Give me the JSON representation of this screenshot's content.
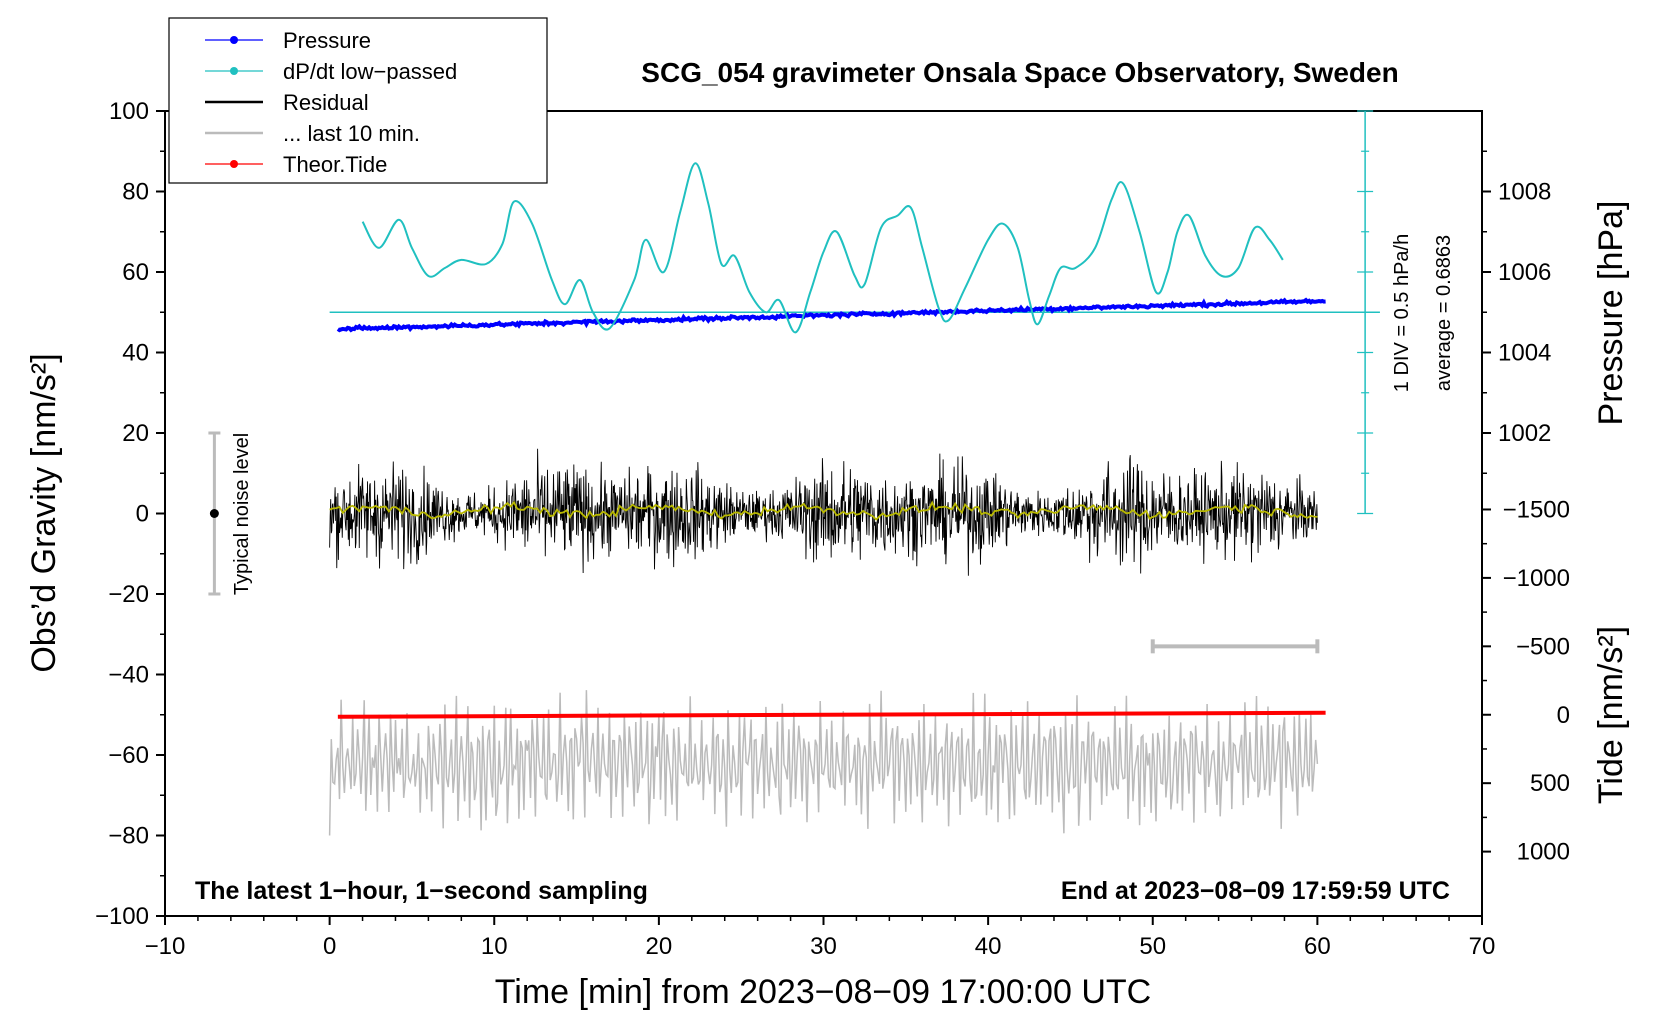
{
  "chart_data": {
    "type": "line",
    "title": "SCG_054 gravimeter Onsala Space Observatory, Sweden",
    "xlabel": "Time [min] from 2023−08−09 17:00:00 UTC",
    "ylabel_left": "Obs’d Gravity [nm/s²]",
    "ylabel_pressure": "Pressure [hPa]",
    "ylabel_tide": "Tide [nm/s²]",
    "xlim": [
      -10,
      70
    ],
    "ylim_left": [
      -100,
      100
    ],
    "x_ticks": [
      "−10",
      "0",
      "10",
      "20",
      "30",
      "40",
      "50",
      "60",
      "70"
    ],
    "y_ticks_left": [
      "100",
      "80",
      "60",
      "40",
      "20",
      "0",
      "−20",
      "−40",
      "−60",
      "−80",
      "−100"
    ],
    "pressure_ticks": [
      "1008",
      "1006",
      "1004",
      "1002"
    ],
    "tide_ticks": [
      "1000",
      "500",
      "0",
      "−500",
      "−1000",
      "−1500"
    ],
    "legend": {
      "pressure": "Pressure",
      "dpdt": "dP/dt low−passed",
      "residual": "Residual",
      "last10": "... last 10 min.",
      "tide": "Theor.Tide"
    },
    "annotations": {
      "noise": "Typical noise level",
      "div": "1 DIV = 0.5 hPa/h",
      "average": "average = 0.6863",
      "footer_left": "The latest 1−hour, 1−second sampling",
      "footer_right": "End at 2023−08−09 17:59:59 UTC"
    },
    "noise_level": {
      "x": -7,
      "center": 0,
      "half_range": 20
    },
    "last10_bar": {
      "x_start": 50,
      "x_end": 60,
      "y": -33
    },
    "series": [
      {
        "name": "Pressure",
        "color": "#0000ff",
        "start_x": 0.5,
        "end_x": 60.5,
        "start_y": 45.8,
        "end_y": 52.8,
        "noise": 0.7
      },
      {
        "name": "dP/dt low-passed",
        "color": "#20c0c0",
        "baseline": 50,
        "points": [
          [
            2,
            72.5
          ],
          [
            3,
            66
          ],
          [
            4.2,
            73
          ],
          [
            5,
            66
          ],
          [
            6,
            59
          ],
          [
            7,
            61
          ],
          [
            8,
            63
          ],
          [
            9.5,
            62
          ],
          [
            10.5,
            67
          ],
          [
            11.2,
            77.5
          ],
          [
            12.3,
            72
          ],
          [
            13.5,
            58
          ],
          [
            14.3,
            52
          ],
          [
            15.2,
            58
          ],
          [
            16,
            50
          ],
          [
            17,
            46
          ],
          [
            18.5,
            58
          ],
          [
            19.2,
            68
          ],
          [
            20.3,
            60
          ],
          [
            21.3,
            75
          ],
          [
            22.2,
            87
          ],
          [
            23,
            77
          ],
          [
            23.8,
            62
          ],
          [
            24.6,
            64
          ],
          [
            25.5,
            55
          ],
          [
            26.5,
            50
          ],
          [
            27.3,
            53
          ],
          [
            28.3,
            45
          ],
          [
            29.2,
            55
          ],
          [
            30,
            65
          ],
          [
            30.8,
            70
          ],
          [
            31.9,
            59
          ],
          [
            32.5,
            57
          ],
          [
            33.5,
            71
          ],
          [
            34.5,
            74
          ],
          [
            35.3,
            76
          ],
          [
            36,
            66
          ],
          [
            37,
            51
          ],
          [
            37.6,
            48
          ],
          [
            38.6,
            56
          ],
          [
            40,
            68
          ],
          [
            40.9,
            72
          ],
          [
            41.8,
            66
          ],
          [
            42.5,
            53
          ],
          [
            43,
            47
          ],
          [
            43.7,
            54
          ],
          [
            44.4,
            61
          ],
          [
            45.3,
            61
          ],
          [
            46.5,
            66
          ],
          [
            47.5,
            78
          ],
          [
            48.2,
            82
          ],
          [
            49.2,
            70
          ],
          [
            50.2,
            55
          ],
          [
            50.9,
            60
          ],
          [
            51.5,
            70
          ],
          [
            52.2,
            74
          ],
          [
            53.2,
            64
          ],
          [
            54.2,
            59
          ],
          [
            55.2,
            61
          ],
          [
            56.2,
            71
          ],
          [
            57.1,
            68
          ],
          [
            57.9,
            63
          ]
        ]
      },
      {
        "name": "Residual",
        "color": "#000000",
        "start_x": 0,
        "end_x": 60,
        "amplitude": 12
      },
      {
        "name": "Residual smoothed",
        "color": "#b8b800",
        "start_x": 0,
        "end_x": 60,
        "level": 0.6863
      },
      {
        "name": "... last 10 min.",
        "color": "#bbbbbb",
        "start_x": 0,
        "end_x": 60,
        "center": -62,
        "amplitude": 15
      },
      {
        "name": "Theor.Tide",
        "color": "#ff0000",
        "start_x": 0.5,
        "end_x": 60.5,
        "start_y": -50.5,
        "end_y": -49.5
      }
    ]
  }
}
